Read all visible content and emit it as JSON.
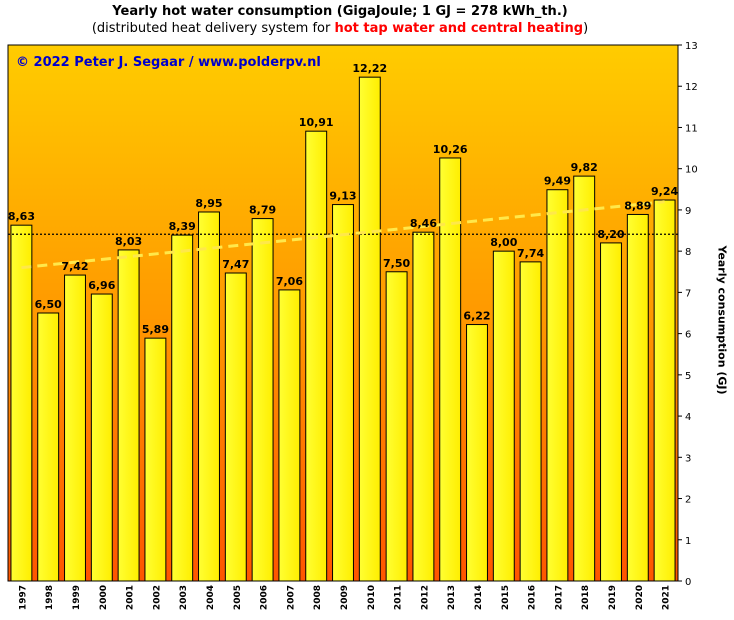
{
  "title_line1": "Yearly hot water consumption  (GigaJoule;  1 GJ = 278  kWh_th.)",
  "title_line2": {
    "prefix": "(distributed  heat delivery  system for ",
    "highlight": "hot tap water  and central heating",
    "suffix": ")"
  },
  "copyright": "© 2022  Peter  J. Segaar  /  www.polderpv.nl",
  "colors": {
    "bar_fill_top": "#ffff33",
    "bar_fill_bottom": "#ffee00",
    "bar_stroke": "#000000",
    "bg_top": "#ffcc00",
    "bg_bottom": "#ff5500",
    "trend_color": "#ffe84a",
    "average_line_color": "#000000",
    "highlight_text": "#ff0000",
    "copyright_text": "#0000cc"
  },
  "chart_data": {
    "type": "bar",
    "categories": [
      "1997",
      "1998",
      "1999",
      "2000",
      "2001",
      "2002",
      "2003",
      "2004",
      "2005",
      "2006",
      "2007",
      "2008",
      "2009",
      "2010",
      "2011",
      "2012",
      "2013",
      "2014",
      "2015",
      "2016",
      "2017",
      "2018",
      "2019",
      "2020",
      "2021"
    ],
    "values": [
      8.63,
      6.5,
      7.42,
      6.96,
      8.03,
      5.89,
      8.39,
      8.95,
      7.47,
      8.79,
      7.06,
      10.91,
      9.13,
      12.22,
      7.5,
      8.46,
      10.26,
      6.22,
      8.0,
      7.74,
      9.49,
      9.82,
      8.2,
      8.89,
      9.24
    ],
    "value_labels": [
      "8,63",
      "6,50",
      "7,42",
      "6,96",
      "8,03",
      "5,89",
      "8,39",
      "8,95",
      "7,47",
      "8,79",
      "7,06",
      "10,91",
      "9,13",
      "12,22",
      "7,50",
      "8,46",
      "10,26",
      "6,22",
      "8,00",
      "7,74",
      "9,49",
      "9,82",
      "8,20",
      "8,89",
      "9,24"
    ],
    "ylabel": "Yearly consumption (GJ)",
    "ylim": [
      0,
      13
    ],
    "yticks": [
      0,
      1,
      2,
      3,
      4,
      5,
      6,
      7,
      8,
      9,
      10,
      11,
      12,
      13
    ],
    "y_axis_side": "right",
    "average": 8.41,
    "trend": {
      "start": 7.6,
      "end": 9.2,
      "style": "dashed"
    },
    "grid": false
  }
}
